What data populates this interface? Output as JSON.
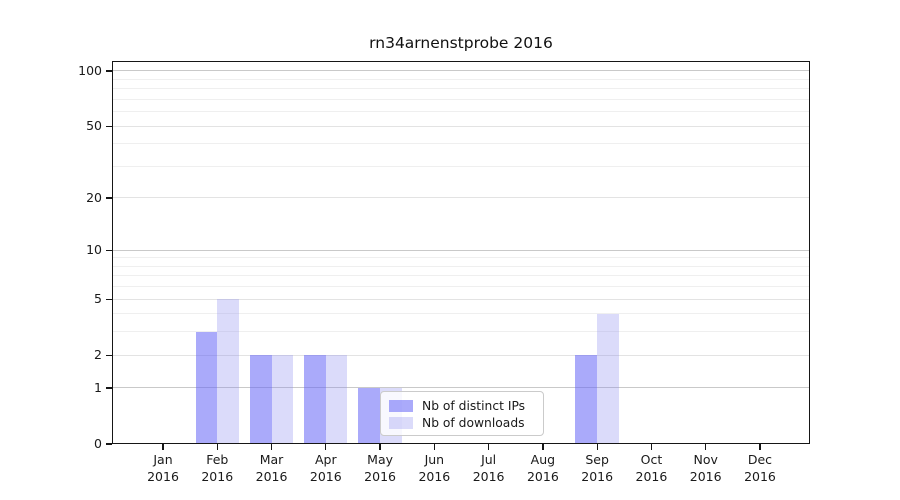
{
  "title": "rn34arnenstprobe 2016",
  "chart_data": {
    "type": "bar",
    "title": "rn34arnenstprobe 2016",
    "categories": [
      "Jan 2016",
      "Feb 2016",
      "Mar 2016",
      "Apr 2016",
      "May 2016",
      "Jun 2016",
      "Jul 2016",
      "Aug 2016",
      "Sep 2016",
      "Oct 2016",
      "Nov 2016",
      "Dec 2016"
    ],
    "x_months": [
      "Jan",
      "Feb",
      "Mar",
      "Apr",
      "May",
      "Jun",
      "Jul",
      "Aug",
      "Sep",
      "Oct",
      "Nov",
      "Dec"
    ],
    "x_year": "2016",
    "series": [
      {
        "name": "Nb of distinct IPs",
        "color": "#6464f5",
        "opacity": 0.55,
        "values": [
          0,
          3,
          2,
          2,
          1,
          0,
          0,
          0,
          2,
          0,
          0,
          0
        ]
      },
      {
        "name": "Nb of downloads",
        "color": "#8787f0",
        "opacity": 0.3,
        "values": [
          0,
          5,
          2,
          2,
          1,
          0,
          0,
          0,
          4,
          0,
          0,
          0
        ]
      }
    ],
    "yscale": "log1p",
    "ylim": [
      0,
      113
    ],
    "y_ticks": [
      0,
      1,
      2,
      5,
      10,
      20,
      50,
      100
    ],
    "y_grid": {
      "major": [
        1,
        10,
        100
      ],
      "mid": [
        2,
        5,
        20,
        50
      ],
      "minor": [
        3,
        4,
        6,
        7,
        8,
        9,
        30,
        40,
        60,
        70,
        80,
        90
      ]
    },
    "grid": true,
    "legend_position": "lower-right-inside"
  },
  "colors": {
    "grid_major": "#c9c9c9",
    "grid_mid": "#e3e3e3",
    "grid_minor": "#efefef",
    "spine": "#161616",
    "text": "#1a1a1a",
    "background": "#ffffff"
  }
}
